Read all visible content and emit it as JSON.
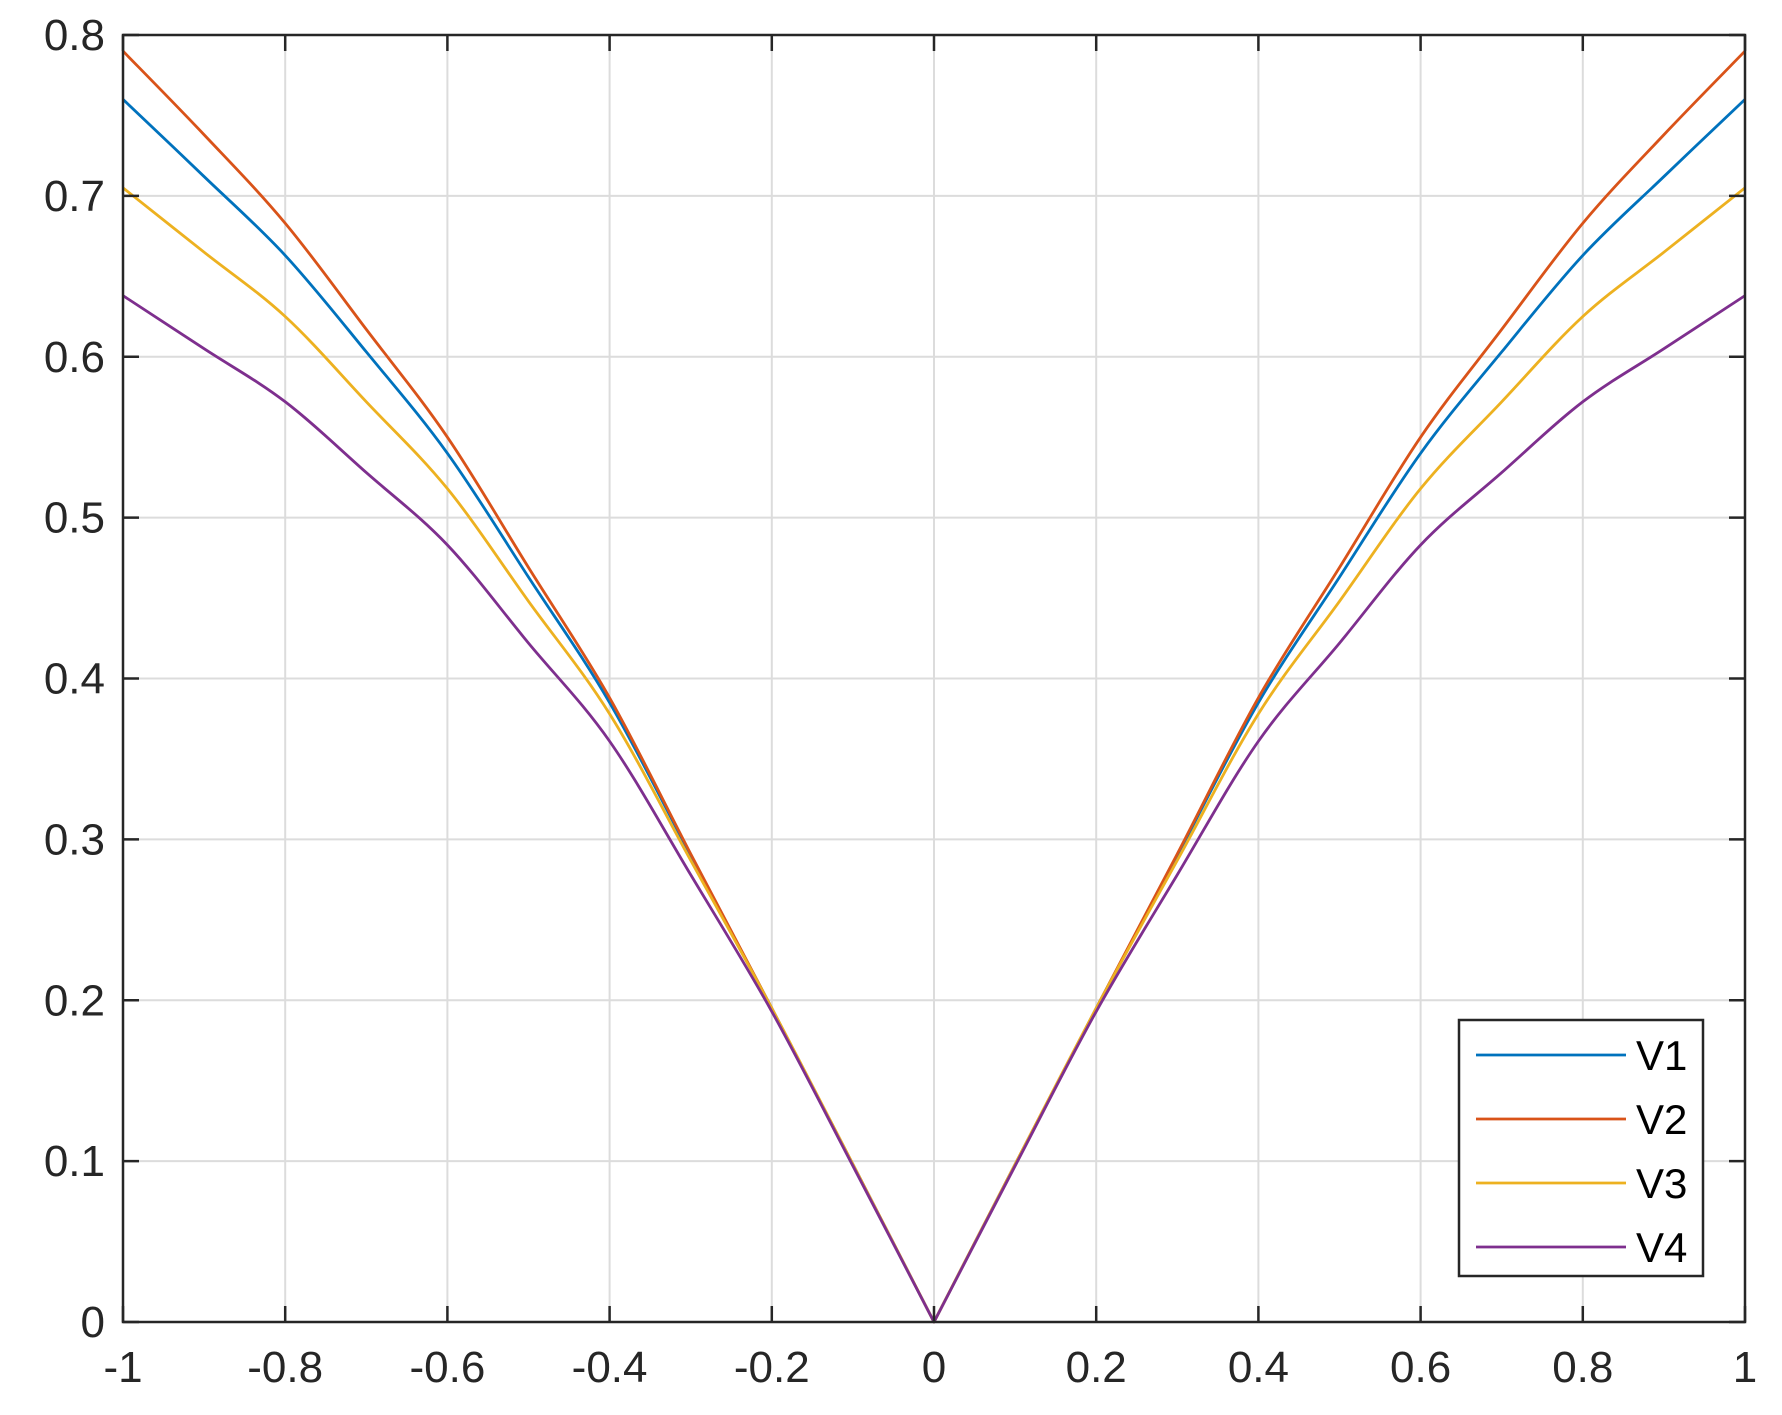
{
  "chart_data": {
    "type": "line",
    "title": "",
    "xlabel": "",
    "ylabel": "",
    "xlim": [
      -1,
      1
    ],
    "ylim": [
      0,
      0.8
    ],
    "grid": true,
    "legend_position": "bottom-right",
    "x_ticks": [
      -1,
      -0.8,
      -0.6,
      -0.4,
      -0.2,
      0,
      0.2,
      0.4,
      0.6,
      0.8,
      1
    ],
    "x_tick_labels": [
      "-1",
      "-0.8",
      "-0.6",
      "-0.4",
      "-0.2",
      "0",
      "0.2",
      "0.4",
      "0.6",
      "0.8",
      "1"
    ],
    "y_ticks": [
      0,
      0.1,
      0.2,
      0.3,
      0.4,
      0.5,
      0.6,
      0.7,
      0.8
    ],
    "y_tick_labels": [
      "0",
      "0.1",
      "0.2",
      "0.3",
      "0.4",
      "0.5",
      "0.6",
      "0.7",
      "0.8"
    ],
    "x": [
      -1,
      -0.9,
      -0.8,
      -0.7,
      -0.6,
      -0.5,
      -0.4,
      -0.3,
      -0.2,
      -0.1,
      0,
      0.1,
      0.2,
      0.3,
      0.4,
      0.5,
      0.6,
      0.7,
      0.8,
      0.9,
      1
    ],
    "series": [
      {
        "name": "V1",
        "color": "#0072BD",
        "values": [
          0.76,
          0.712,
          0.663,
          0.603,
          0.54,
          0.463,
          0.385,
          0.29,
          0.195,
          0.098,
          0,
          0.098,
          0.195,
          0.29,
          0.385,
          0.463,
          0.54,
          0.603,
          0.663,
          0.712,
          0.76
        ]
      },
      {
        "name": "V2",
        "color": "#D95319",
        "values": [
          0.79,
          0.738,
          0.683,
          0.617,
          0.55,
          0.469,
          0.388,
          0.291,
          0.195,
          0.098,
          0,
          0.098,
          0.195,
          0.291,
          0.388,
          0.469,
          0.55,
          0.617,
          0.683,
          0.738,
          0.79
        ]
      },
      {
        "name": "V3",
        "color": "#EDB120",
        "values": [
          0.705,
          0.665,
          0.625,
          0.572,
          0.518,
          0.448,
          0.378,
          0.287,
          0.195,
          0.098,
          0,
          0.098,
          0.195,
          0.287,
          0.378,
          0.448,
          0.518,
          0.572,
          0.625,
          0.665,
          0.705
        ]
      },
      {
        "name": "V4",
        "color": "#7E2F8E",
        "values": [
          0.638,
          0.605,
          0.572,
          0.528,
          0.483,
          0.422,
          0.361,
          0.278,
          0.193,
          0.097,
          0,
          0.097,
          0.193,
          0.278,
          0.361,
          0.422,
          0.483,
          0.528,
          0.572,
          0.605,
          0.638
        ]
      }
    ]
  }
}
